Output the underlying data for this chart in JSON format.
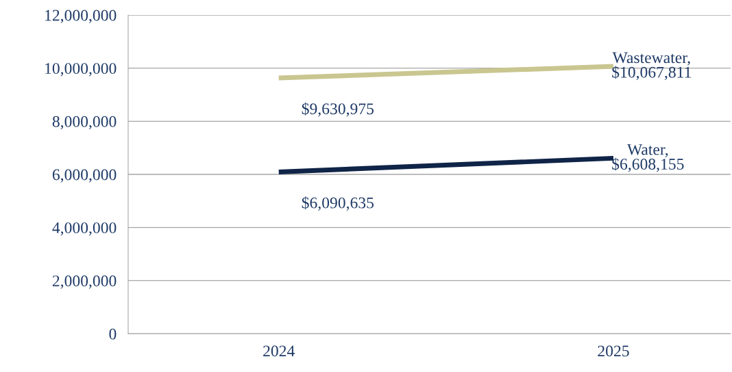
{
  "chart_data": {
    "type": "line",
    "categories": [
      "2024",
      "2025"
    ],
    "series": [
      {
        "name": "Wastewater,",
        "color": "#c9c690",
        "values": [
          9630975,
          10067811
        ],
        "value_labels": [
          "$9,630,975",
          "$10,067,811"
        ]
      },
      {
        "name": "Water,",
        "color": "#0f2447",
        "values": [
          6090635,
          6608155
        ],
        "value_labels": [
          "$6,090,635",
          "$6,608,155"
        ]
      }
    ],
    "ylim": [
      0,
      12000000
    ],
    "yticks": [
      0,
      {
        "value": 2000000,
        "label": "2,000,000"
      },
      {
        "value": 4000000,
        "label": "4,000,000"
      },
      {
        "value": 6000000,
        "label": "6,000,000"
      },
      {
        "value": 8000000,
        "label": "8,000,000"
      },
      {
        "value": 10000000,
        "label": "10,000,000"
      },
      {
        "value": 12000000,
        "label": "12,000,000"
      }
    ],
    "grid": "y",
    "legend": false,
    "marker": "none",
    "line_style": "solid"
  }
}
